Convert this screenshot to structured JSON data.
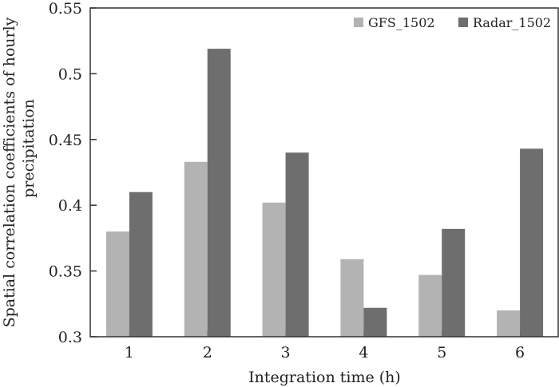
{
  "chart_data": {
    "type": "bar",
    "title": "",
    "xlabel": "Integration time (h)",
    "ylabel": [
      "Spatial correlation coefficients of hourly",
      "precipitation"
    ],
    "categories": [
      "1",
      "2",
      "3",
      "4",
      "5",
      "6"
    ],
    "series": [
      {
        "name": "GFS_1502",
        "color": "#b3b3b3",
        "values": [
          0.38,
          0.433,
          0.402,
          0.359,
          0.347,
          0.32
        ]
      },
      {
        "name": "Radar_1502",
        "color": "#6e6e6e",
        "values": [
          0.41,
          0.519,
          0.44,
          0.322,
          0.382,
          0.443
        ]
      }
    ],
    "ylim": [
      0.3,
      0.55
    ],
    "yticks": [
      0.3,
      0.35,
      0.4,
      0.45,
      0.5,
      0.55
    ],
    "ytick_labels": [
      "0.3",
      "0.35",
      "0.4",
      "0.45",
      "0.5",
      "0.55"
    ],
    "grid": false,
    "legend_position": "top-right"
  }
}
